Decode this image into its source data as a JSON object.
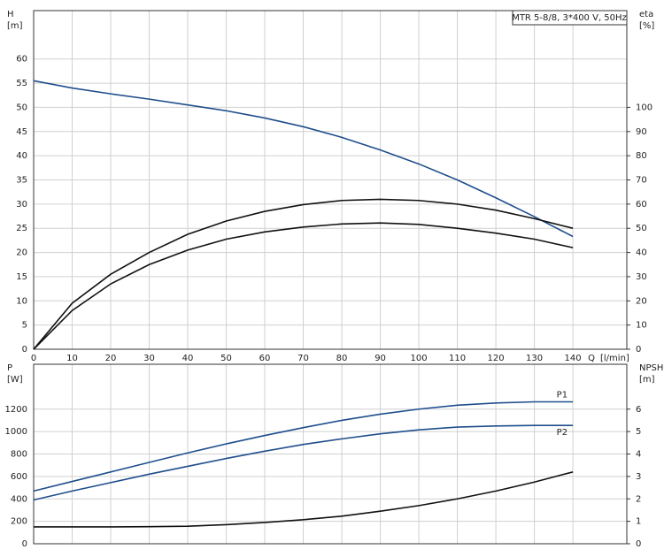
{
  "chart_data": [
    {
      "type": "line",
      "title": "MTR 5-8/8, 3*400 V, 50Hz",
      "ylabel": "H",
      "ylabel_unit": "[m]",
      "y2label": "eta",
      "y2label_unit": "[%]",
      "xlabel": "Q",
      "xlabel_unit": "[l/min]",
      "x": [
        0,
        10,
        20,
        30,
        40,
        50,
        60,
        70,
        80,
        90,
        100,
        110,
        120,
        130,
        140
      ],
      "xlim": [
        0,
        154
      ],
      "xticks": [
        0,
        10,
        20,
        30,
        40,
        50,
        60,
        70,
        80,
        90,
        100,
        110,
        120,
        130,
        140
      ],
      "ylim": [
        0,
        70
      ],
      "yticks": [
        0,
        5,
        10,
        15,
        20,
        25,
        30,
        35,
        40,
        45,
        50,
        55,
        60
      ],
      "y2lim": [
        0,
        140
      ],
      "y2ticks": [
        0,
        10,
        20,
        30,
        40,
        50,
        60,
        70,
        80,
        90,
        100
      ],
      "grid": true,
      "series": [
        {
          "color": "#1f4e8c",
          "values": [
            55.5,
            54,
            52.8,
            51.7,
            50.5,
            49.3,
            47.8,
            46,
            43.8,
            41.2,
            38.3,
            35,
            31.3,
            27.4,
            23.3
          ]
        },
        {
          "color": "#111111",
          "axis": "y2",
          "values": [
            0,
            19,
            31,
            40,
            47.5,
            53,
            57,
            59.8,
            61.5,
            62,
            61.5,
            60,
            57.5,
            54,
            50
          ]
        },
        {
          "color": "#111111",
          "axis": "y2",
          "values": [
            0,
            16,
            27,
            35,
            41,
            45.5,
            48.5,
            50.5,
            51.8,
            52.2,
            51.6,
            50,
            48,
            45.5,
            42
          ]
        }
      ]
    },
    {
      "type": "line",
      "ylabel": "P",
      "ylabel_unit": "[W]",
      "y2label": "NPSH",
      "y2label_unit": "[m]",
      "x": [
        0,
        10,
        20,
        30,
        40,
        50,
        60,
        70,
        80,
        90,
        100,
        110,
        120,
        130,
        140
      ],
      "xlim": [
        0,
        154
      ],
      "xticks": [
        0,
        10,
        20,
        30,
        40,
        50,
        60,
        70,
        80,
        90,
        100,
        110,
        120,
        130,
        140
      ],
      "ylim": [
        0,
        1600
      ],
      "yticks": [
        0,
        200,
        400,
        600,
        800,
        1000,
        1200
      ],
      "y2lim": [
        0,
        8
      ],
      "y2ticks": [
        0,
        1,
        2,
        3,
        4,
        5,
        6
      ],
      "grid": true,
      "series": [
        {
          "name": "P1",
          "color": "#1f4e8c",
          "values": [
            470,
            555,
            640,
            725,
            810,
            890,
            965,
            1035,
            1100,
            1155,
            1200,
            1235,
            1255,
            1265,
            1265
          ]
        },
        {
          "name": "P2",
          "color": "#1f4e8c",
          "values": [
            390,
            470,
            545,
            620,
            690,
            760,
            825,
            885,
            935,
            980,
            1015,
            1040,
            1050,
            1055,
            1055
          ]
        },
        {
          "color": "#111111",
          "axis": "y2",
          "values": [
            0.75,
            0.75,
            0.75,
            0.76,
            0.78,
            0.85,
            0.95,
            1.07,
            1.23,
            1.45,
            1.7,
            2.0,
            2.35,
            2.75,
            3.2
          ]
        }
      ]
    }
  ]
}
